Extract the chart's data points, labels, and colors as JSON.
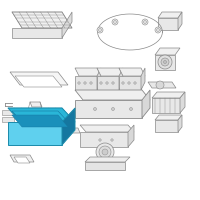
{
  "bg_color": "#ffffff",
  "lc": "#888888",
  "lc_dark": "#555555",
  "hc_fill": "#29b6d8",
  "hc_edge": "#1a8aaa",
  "hc_dark": "#1577a0",
  "hc_light": "#5fd0ee"
}
